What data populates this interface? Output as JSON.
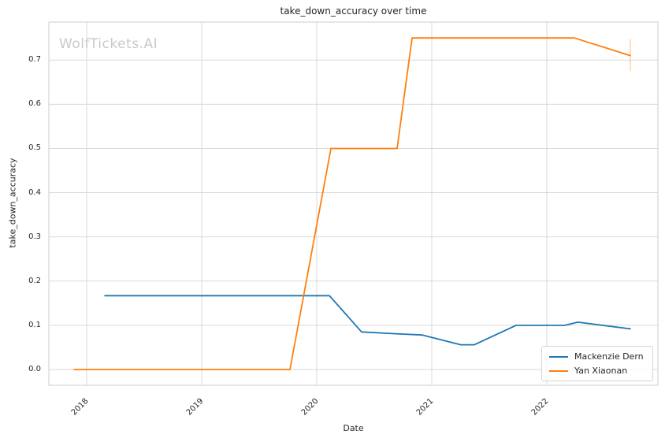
{
  "watermark": "WolfTickets.AI",
  "chart_data": {
    "type": "line",
    "title": "take_down_accuracy over time",
    "xlabel": "Date",
    "ylabel": "take_down_accuracy",
    "x_unit": "decimal_year (fight dates)",
    "xlim": [
      2017.671,
      2022.966
    ],
    "ylim": [
      -0.0357,
      0.786
    ],
    "grid": true,
    "legend_position": "lower right",
    "x_ticks": [
      {
        "value": 2018,
        "label": "2018"
      },
      {
        "value": 2019,
        "label": "2019"
      },
      {
        "value": 2020,
        "label": "2020"
      },
      {
        "value": 2021,
        "label": "2021"
      },
      {
        "value": 2022,
        "label": "2022"
      }
    ],
    "y_ticks": [
      {
        "value": 0.0,
        "label": "0.0"
      },
      {
        "value": 0.1,
        "label": "0.1"
      },
      {
        "value": 0.2,
        "label": "0.2"
      },
      {
        "value": 0.3,
        "label": "0.3"
      },
      {
        "value": 0.4,
        "label": "0.4"
      },
      {
        "value": 0.5,
        "label": "0.5"
      },
      {
        "value": 0.6,
        "label": "0.6"
      },
      {
        "value": 0.7,
        "label": "0.7"
      }
    ],
    "series": [
      {
        "name": "Mackenzie Dern",
        "color": "#1f77b4",
        "x": [
          2018.158,
          2020.11,
          2020.39,
          2020.671,
          2020.918,
          2021.253,
          2021.37,
          2021.733,
          2022.158,
          2022.27,
          2022.726
        ],
        "y": [
          0.167,
          0.167,
          0.085,
          0.081,
          0.078,
          0.056,
          0.056,
          0.1,
          0.1,
          0.107,
          0.092
        ]
      },
      {
        "name": "Yan Xiaonan",
        "color": "#ff7f0e",
        "x": [
          2017.89,
          2019.767,
          2020.123,
          2020.699,
          2020.829,
          2022.24,
          2022.726
        ],
        "y": [
          0.0,
          0.0,
          0.5,
          0.5,
          0.75,
          0.75,
          0.71
        ],
        "error_bar": {
          "x": 2022.726,
          "y_low": 0.675,
          "y_high": 0.748
        }
      }
    ]
  },
  "colors": {
    "grid": "#d9d9d9",
    "spine": "#d4d4d4",
    "text": "#262626",
    "watermark": "#c9c9c9",
    "background": "#ffffff"
  }
}
